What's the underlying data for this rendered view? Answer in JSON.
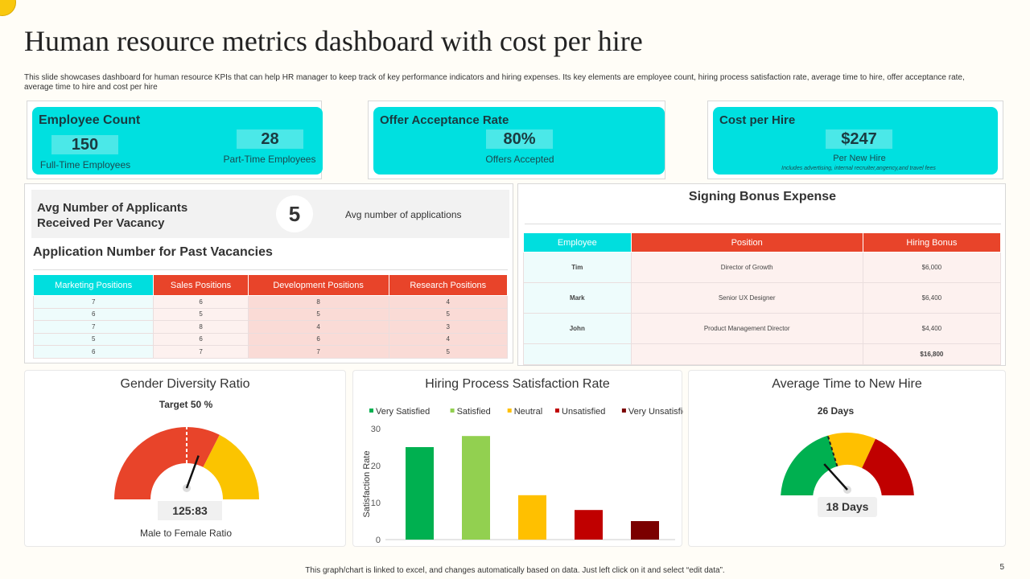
{
  "title": "Human resource metrics dashboard with cost per hire",
  "description": "This slide showcases dashboard for human resource KPIs that can help HR manager to keep track of key performance indicators and hiring expenses. Its key elements are employee count, hiring process satisfaction rate, average time to hire, offer acceptance rate, average time to hire and cost per hire",
  "employee_count": {
    "title": "Employee Count",
    "full_time": "150",
    "full_time_label": "Full-Time Employees",
    "part_time": "28",
    "part_time_label": "Part-Time Employees"
  },
  "offer": {
    "title": "Offer Acceptance Rate",
    "value": "80%",
    "label": "Offers Accepted"
  },
  "cost": {
    "title": "Cost per Hire",
    "value": "$247",
    "label": "Per New Hire",
    "note": "Includes advertising, internal recruiter,angency,and  travel fees"
  },
  "applicants": {
    "title": "Avg Number of Applicants Received Per Vacancy",
    "value": "5",
    "label": "Avg number of applications"
  },
  "applications_table": {
    "title": "Application Number for Past Vacancies",
    "headers": [
      "Marketing Positions",
      "Sales Positions",
      "Development Positions",
      "Research Positions"
    ],
    "rows": [
      [
        "7",
        "6",
        "8",
        "4"
      ],
      [
        "6",
        "5",
        "5",
        "5"
      ],
      [
        "7",
        "8",
        "4",
        "3"
      ],
      [
        "5",
        "6",
        "6",
        "4"
      ],
      [
        "6",
        "7",
        "7",
        "5"
      ]
    ]
  },
  "bonus": {
    "title": "Signing Bonus Expense",
    "headers": [
      "Employee",
      "Position",
      "Hiring Bonus"
    ],
    "rows": [
      [
        "Tim",
        "Director of Growth",
        "$6,000"
      ],
      [
        "Mark",
        "Senior UX Designer",
        "$6,400"
      ],
      [
        "John",
        "Product Management Director",
        "$4,400"
      ]
    ],
    "total": "$16,800"
  },
  "gender": {
    "title": "Gender Diversity Ratio",
    "target": "Target 50 %",
    "value": "125:83",
    "label": "Male to Female Ratio",
    "colors": [
      "#e8442a",
      "#fbc400"
    ]
  },
  "time": {
    "title": "Average Time to New Hire",
    "target": "26 Days",
    "value": "18 Days",
    "colors": [
      "#00b050",
      "#ffc000",
      "#c00000"
    ]
  },
  "chart_data": {
    "type": "bar",
    "title": "Hiring Process Satisfaction Rate",
    "ylabel": "Satisfaction Rate",
    "ylim": [
      0,
      30
    ],
    "yticks": [
      "0",
      "10",
      "20",
      "30"
    ],
    "legend": "top",
    "categories": [
      "Very Satisfied",
      "Satisfied",
      "Neutral",
      "Unsatisfied",
      "Very Unsatisfied"
    ],
    "values": [
      25,
      28,
      12,
      8,
      5
    ],
    "colors": [
      "#00b050",
      "#92d050",
      "#ffc000",
      "#c00000",
      "#7b0000"
    ]
  },
  "footer": "This graph/chart is linked to excel, and changes automatically based on data. Just left click on it and select “edit data”.",
  "page_number": "5"
}
